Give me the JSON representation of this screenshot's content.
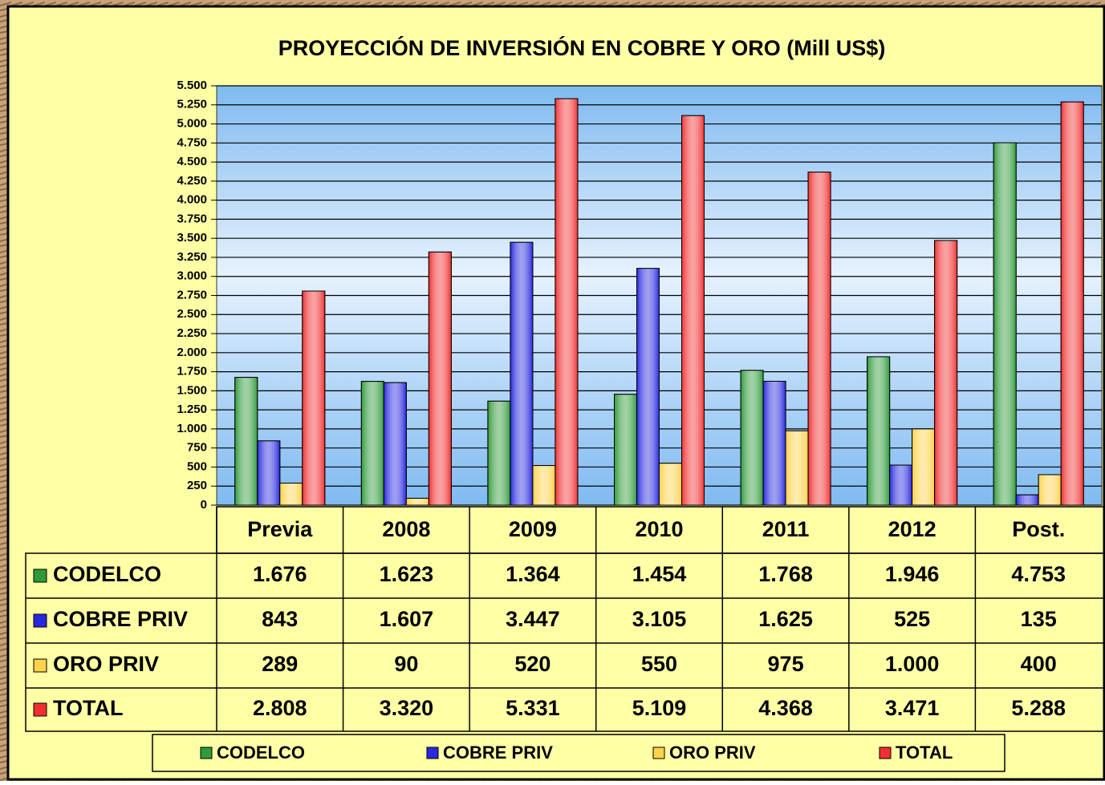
{
  "chart_data": {
    "type": "bar",
    "title": "PROYECCIÓN DE INVERSIÓN EN COBRE Y ORO (Mill US$)",
    "categories": [
      "Previa",
      "2008",
      "2009",
      "2010",
      "2011",
      "2012",
      "Post."
    ],
    "series": [
      {
        "name": "CODELCO",
        "color": "#2f9a3a",
        "values": [
          1676,
          1623,
          1364,
          1454,
          1768,
          1946,
          4753
        ],
        "value_labels": [
          "1.676",
          "1.623",
          "1.364",
          "1.454",
          "1.768",
          "1.946",
          "4.753"
        ]
      },
      {
        "name": "COBRE PRIV",
        "color": "#2828e0",
        "values": [
          843,
          1607,
          3447,
          3105,
          1625,
          525,
          135
        ],
        "value_labels": [
          "843",
          "1.607",
          "3.447",
          "3.105",
          "1.625",
          "525",
          "135"
        ]
      },
      {
        "name": "ORO PRIV",
        "color": "#ffd24a",
        "values": [
          289,
          90,
          520,
          550,
          975,
          1000,
          400
        ],
        "value_labels": [
          "289",
          "90",
          "520",
          "550",
          "975",
          "1.000",
          "400"
        ]
      },
      {
        "name": "TOTAL",
        "color": "#f03030",
        "values": [
          2808,
          3320,
          5331,
          5109,
          4368,
          3471,
          5288
        ],
        "value_labels": [
          "2.808",
          "3.320",
          "5.331",
          "5.109",
          "4.368",
          "3.471",
          "5.288"
        ]
      }
    ],
    "ylim": [
      0,
      5500
    ],
    "yticks": [
      0,
      250,
      500,
      750,
      {
        "value": 1000,
        "label": "1.000"
      },
      {
        "value": 1250,
        "label": "1.250"
      },
      {
        "value": 1500,
        "label": "1.500"
      },
      {
        "value": 1750,
        "label": "1.750"
      },
      {
        "value": 2000,
        "label": "2.000"
      },
      {
        "value": 2250,
        "label": "2.250"
      },
      {
        "value": 2500,
        "label": "2.500"
      },
      {
        "value": 2750,
        "label": "2.750"
      },
      {
        "value": 3000,
        "label": "3.000"
      },
      {
        "value": 3250,
        "label": "3.250"
      },
      {
        "value": 3500,
        "label": "3.500"
      },
      {
        "value": 3750,
        "label": "3.750"
      },
      {
        "value": 4000,
        "label": "4.000"
      },
      {
        "value": 4250,
        "label": "4.250"
      },
      {
        "value": 4500,
        "label": "4.500"
      },
      {
        "value": 4750,
        "label": "4.750"
      },
      {
        "value": 5000,
        "label": "5.000"
      },
      {
        "value": 5250,
        "label": "5.250"
      },
      {
        "value": 5500,
        "label": "5.500"
      }
    ],
    "grid": true,
    "legend": "bottom"
  }
}
